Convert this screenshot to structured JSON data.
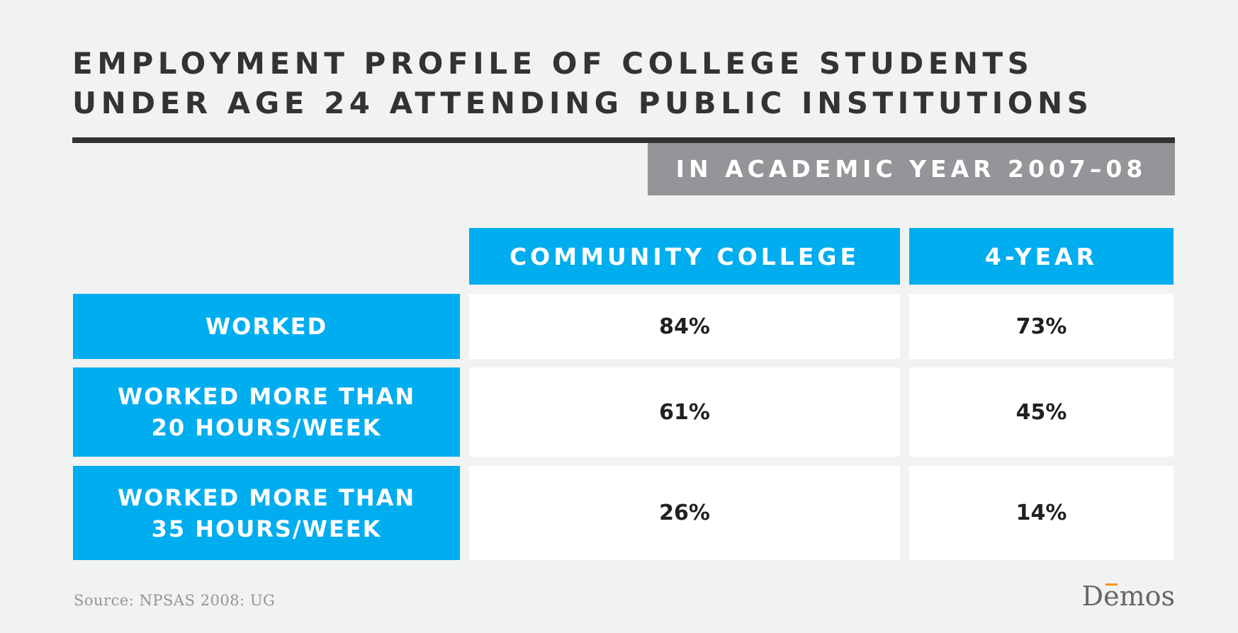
{
  "chart_data": {
    "type": "table",
    "title_lines": [
      "EMPLOYMENT PROFILE OF COLLEGE STUDENTS",
      "UNDER AGE 24 ATTENDING PUBLIC INSTITUTIONS"
    ],
    "subtitle": "IN ACADEMIC YEAR 2007–08",
    "columns": [
      "COMMUNITY COLLEGE",
      "4-YEAR"
    ],
    "rows": [
      {
        "label_lines": [
          "WORKED"
        ],
        "values": [
          "84%",
          "73%"
        ]
      },
      {
        "label_lines": [
          "WORKED MORE THAN",
          "20 HOURS/WEEK"
        ],
        "values": [
          "61%",
          "45%"
        ]
      },
      {
        "label_lines": [
          "WORKED MORE THAN",
          "35 HOURS/WEEK"
        ],
        "values": [
          "26%",
          "14%"
        ]
      }
    ],
    "source": "Source: NPSAS 2008: UG"
  },
  "logo": {
    "first": "D",
    "accent_letter": "e",
    "rest": "mos"
  },
  "colors": {
    "header_blue": "#00adef",
    "subtitle_gray": "#939598",
    "text_dark": "#333333",
    "accent_orange": "#f7941d"
  }
}
